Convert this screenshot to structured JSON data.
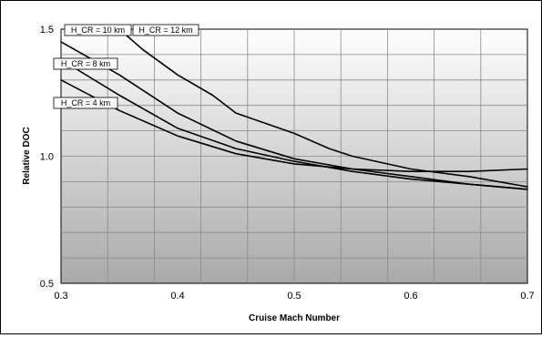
{
  "chart_data": {
    "type": "line",
    "xlabel": "Cruise Mach Number",
    "ylabel": "Relative DOC",
    "xlim": [
      0.3,
      0.7
    ],
    "ylim": [
      0.5,
      1.5
    ],
    "x_ticks": [
      0.3,
      0.4,
      0.5,
      0.6,
      0.7
    ],
    "x_tick_labels": [
      "0.3",
      "0.4",
      "0.5",
      "0.6",
      "0.7"
    ],
    "y_ticks": [
      0.5,
      1.0,
      1.5
    ],
    "y_tick_labels": [
      "0.5",
      "1.0",
      "1.5"
    ],
    "grid": true,
    "series": [
      {
        "name": "H_CR = 4 km",
        "x": [
          0.3,
          0.35,
          0.4,
          0.45,
          0.5,
          0.55,
          0.6,
          0.65,
          0.7
        ],
        "values": [
          1.3,
          1.18,
          1.08,
          1.01,
          0.97,
          0.95,
          0.94,
          0.94,
          0.95
        ]
      },
      {
        "name": "H_CR = 8 km",
        "x": [
          0.3,
          0.35,
          0.4,
          0.45,
          0.5,
          0.55,
          0.6,
          0.65,
          0.7
        ],
        "values": [
          1.38,
          1.24,
          1.11,
          1.03,
          0.98,
          0.94,
          0.91,
          0.89,
          0.87
        ]
      },
      {
        "name": "H_CR = 10 km",
        "x": [
          0.3,
          0.35,
          0.4,
          0.45,
          0.5,
          0.55,
          0.6,
          0.65,
          0.7
        ],
        "values": [
          1.45,
          1.32,
          1.17,
          1.06,
          0.99,
          0.95,
          0.92,
          0.89,
          0.87
        ]
      },
      {
        "name": "H_CR = 12 km",
        "x": [
          0.35,
          0.37,
          0.4,
          0.43,
          0.45,
          0.5,
          0.53,
          0.55,
          0.6,
          0.65,
          0.7
        ],
        "values": [
          1.5,
          1.42,
          1.32,
          1.24,
          1.17,
          1.09,
          1.03,
          1.0,
          0.95,
          0.92,
          0.88
        ]
      }
    ],
    "annotations": [
      {
        "text": "H_CR = 10 km"
      },
      {
        "text": "H_CR = 12 km"
      },
      {
        "text": "H_CR = 8 km"
      },
      {
        "text": "H_CR = 4 km"
      }
    ]
  }
}
